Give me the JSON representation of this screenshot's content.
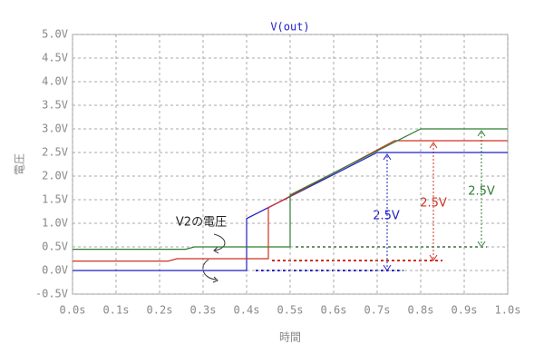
{
  "chart_data": {
    "type": "line",
    "title": "V(out)",
    "x_label": "時間",
    "y_label": "電圧",
    "xlim": [
      0,
      1
    ],
    "ylim": [
      -0.5,
      5
    ],
    "xticks": [
      {
        "value": 0,
        "label": "0.0s"
      },
      {
        "value": 0.1,
        "label": "0.1s"
      },
      {
        "value": 0.2,
        "label": "0.2s"
      },
      {
        "value": 0.3,
        "label": "0.3s"
      },
      {
        "value": 0.4,
        "label": "0.4s"
      },
      {
        "value": 0.5,
        "label": "0.5s"
      },
      {
        "value": 0.6,
        "label": "0.6s"
      },
      {
        "value": 0.7,
        "label": "0.7s"
      },
      {
        "value": 0.8,
        "label": "0.8s"
      },
      {
        "value": 0.9,
        "label": "0.9s"
      },
      {
        "value": 1,
        "label": "1.0s"
      }
    ],
    "yticks": [
      {
        "value": -0.5,
        "label": "-0.5V"
      },
      {
        "value": 0,
        "label": "0.0V"
      },
      {
        "value": 0.5,
        "label": "0.5V"
      },
      {
        "value": 1,
        "label": "1.0V"
      },
      {
        "value": 1.5,
        "label": "1.5V"
      },
      {
        "value": 2,
        "label": "2.0V"
      },
      {
        "value": 2.5,
        "label": "2.5V"
      },
      {
        "value": 3,
        "label": "3.0V"
      },
      {
        "value": 3.5,
        "label": "3.5V"
      },
      {
        "value": 4,
        "label": "4.0V"
      },
      {
        "value": 4.5,
        "label": "4.5V"
      },
      {
        "value": 5,
        "label": "5.0V"
      }
    ],
    "grid": true,
    "series": [
      {
        "color": "#1f1fc8",
        "x": [
          0,
          0.4,
          0.4,
          0.7,
          1
        ],
        "values": [
          0,
          0,
          1.1,
          2.5,
          2.5
        ]
      },
      {
        "color": "#d03020",
        "x": [
          0,
          0.22,
          0.24,
          0.45,
          0.45,
          0.74,
          1
        ],
        "values": [
          0.2,
          0.2,
          0.25,
          0.25,
          1.33,
          2.75,
          2.75
        ]
      },
      {
        "color": "#2e7d32",
        "x": [
          0,
          0.26,
          0.28,
          0.5,
          0.5,
          0.8,
          1
        ],
        "values": [
          0.45,
          0.45,
          0.5,
          0.5,
          1.6,
          3,
          3
        ]
      }
    ],
    "annotations": [
      "V2の電圧",
      "2.5V",
      "2.5V",
      "2.5V"
    ]
  }
}
